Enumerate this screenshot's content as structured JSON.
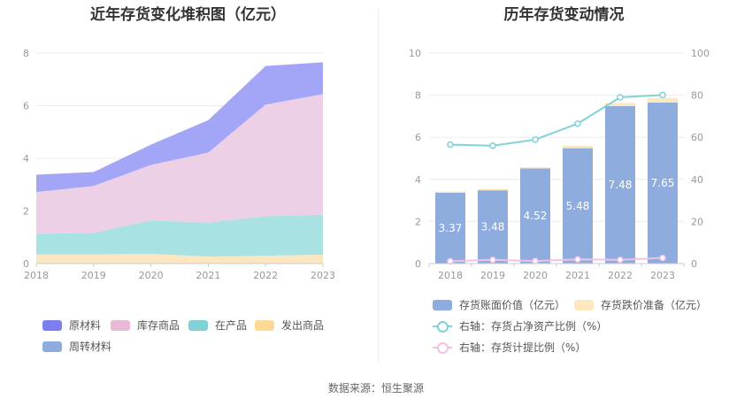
{
  "titles": {
    "left": "近年存货变化堆积图（亿元）",
    "right": "历年存货变动情况"
  },
  "source": "数据来源：恒生聚源",
  "colors": {
    "raw": "#a3a6f6",
    "wip_goods": "#edd0e6",
    "in_production": "#a9e2e2",
    "shipped": "#fce6c2",
    "book_bar": "#8eadde",
    "impairment_bar": "#fde7bd",
    "ratio_line": "#80d2d6",
    "provision_line": "#f1c1e4"
  },
  "legend_left": [
    {
      "label": "原材料",
      "color": "#7b7ff0"
    },
    {
      "label": "库存商品",
      "color": "#e9b8d9"
    },
    {
      "label": "在产品",
      "color": "#80d2d6"
    },
    {
      "label": "发出商品",
      "color": "#fdd995"
    },
    {
      "label": "周转材料",
      "color": "#8eadde"
    }
  ],
  "legend_right": {
    "book": "存货账面价值（亿元）",
    "impairment": "存货跌价准备（亿元）",
    "ratio": "右轴：存货占净资产比例（%）",
    "provision": "右轴：存货计提比例（%）"
  },
  "chart_data": [
    {
      "type": "area",
      "stacked": true,
      "title": "近年存货变化堆积图（亿元）",
      "x": [
        "2018",
        "2019",
        "2020",
        "2021",
        "2022",
        "2023"
      ],
      "ylim": [
        0,
        8
      ],
      "yticks": [
        0,
        2,
        4,
        6,
        8
      ],
      "series": [
        {
          "name": "周转材料",
          "values": [
            0.02,
            0.02,
            0.02,
            0.02,
            0.02,
            0.02
          ]
        },
        {
          "name": "发出商品",
          "values": [
            0.33,
            0.33,
            0.35,
            0.25,
            0.28,
            0.32
          ]
        },
        {
          "name": "在产品",
          "values": [
            0.78,
            0.82,
            1.27,
            1.29,
            1.5,
            1.52
          ]
        },
        {
          "name": "库存商品",
          "values": [
            1.59,
            1.78,
            2.11,
            2.66,
            4.24,
            4.58
          ]
        },
        {
          "name": "原材料",
          "values": [
            0.66,
            0.53,
            0.77,
            1.23,
            1.47,
            1.21
          ]
        }
      ],
      "grid": true,
      "legend": "bottom"
    },
    {
      "type": "bar",
      "stacked": true,
      "title": "历年存货变动情况",
      "categories": [
        "2018",
        "2019",
        "2020",
        "2021",
        "2022",
        "2023"
      ],
      "series": [
        {
          "name": "存货账面价值（亿元）",
          "values": [
            3.37,
            3.48,
            4.52,
            5.48,
            7.48,
            7.65
          ],
          "labels": [
            "3.37",
            "3.48",
            "4.52",
            "5.48",
            "7.48",
            "7.65"
          ]
        },
        {
          "name": "存货跌价准备（亿元）",
          "values": [
            0.05,
            0.07,
            0.06,
            0.12,
            0.15,
            0.22
          ]
        }
      ],
      "lines": [
        {
          "name": "右轴：存货占净资产比例（%）",
          "axis": "right",
          "values": [
            56.5,
            56.0,
            58.9,
            66.5,
            79.0,
            80.1
          ]
        },
        {
          "name": "右轴：存货计提比例（%）",
          "axis": "right",
          "values": [
            1.1,
            1.8,
            1.2,
            2.0,
            1.8,
            2.7
          ]
        }
      ],
      "ylim": [
        0,
        10
      ],
      "yticks": [
        0,
        2,
        4,
        6,
        8,
        10
      ],
      "y2lim": [
        0,
        100
      ],
      "y2ticks": [
        0,
        20,
        40,
        60,
        80,
        100
      ],
      "grid": true,
      "legend": "bottom"
    }
  ]
}
